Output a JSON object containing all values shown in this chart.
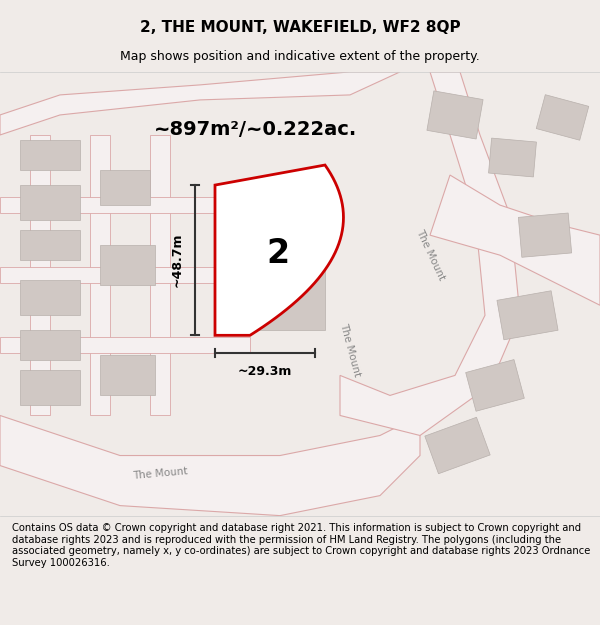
{
  "title": "2, THE MOUNT, WAKEFIELD, WF2 8QP",
  "subtitle": "Map shows position and indicative extent of the property.",
  "area_text": "~897m²/~0.222ac.",
  "dim_width": "~29.3m",
  "dim_height": "~48.7m",
  "label": "2",
  "footer": "Contains OS data © Crown copyright and database right 2021. This information is subject to Crown copyright and database rights 2023 and is reproduced with the permission of HM Land Registry. The polygons (including the associated geometry, namely x, y co-ordinates) are subject to Crown copyright and database rights 2023 Ordnance Survey 100026316.",
  "bg_color": "#f5f0f0",
  "map_bg": "#f0ebe8",
  "road_color": "#e8c8c8",
  "road_fill": "#ffffff",
  "building_color": "#d8d0cc",
  "plot_color": "#cc0000",
  "plot_fill": "#ffffff",
  "title_bg": "#ffffff",
  "footer_bg": "#ffffff"
}
